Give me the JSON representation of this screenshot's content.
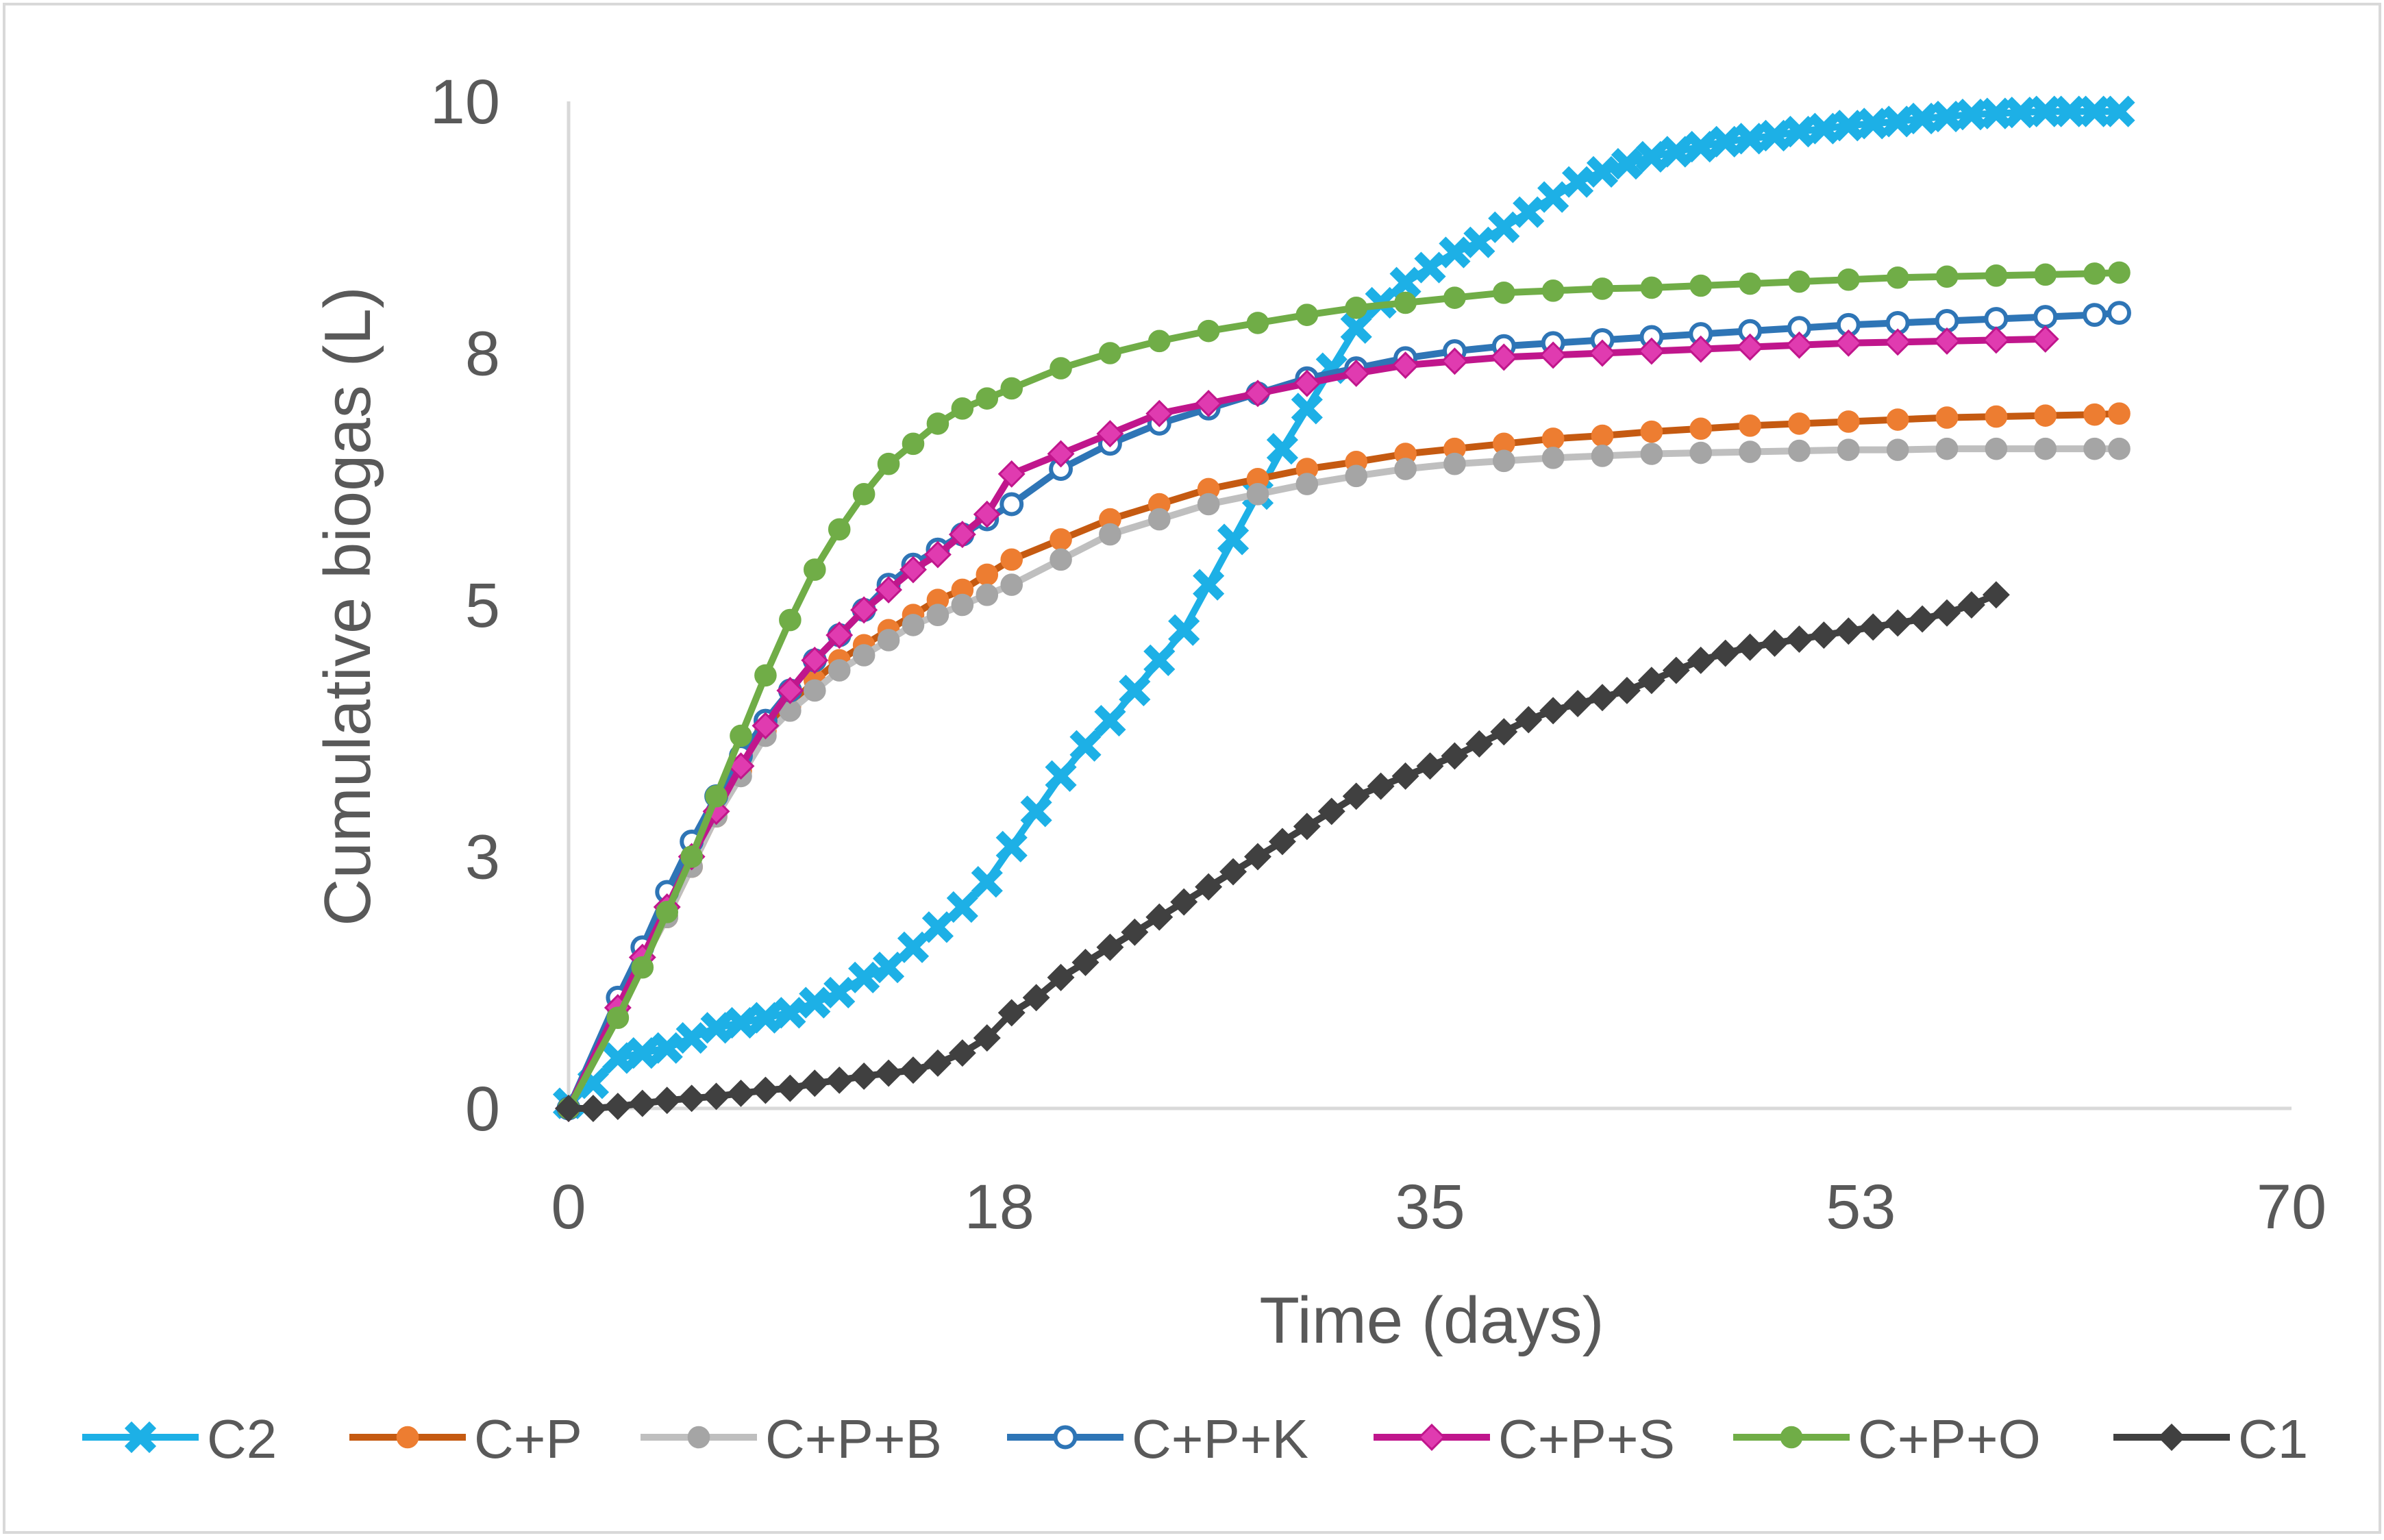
{
  "chart_data": {
    "type": "line",
    "title": "",
    "xlabel": "Time (days)",
    "ylabel": "Cumulative biogas (L)",
    "xlim": [
      0,
      70
    ],
    "ylim": [
      0,
      10
    ],
    "x_ticks": [
      0,
      17.5,
      35,
      52.5,
      70
    ],
    "x_tick_labels": [
      "0",
      "18",
      "35",
      "53",
      "70"
    ],
    "y_ticks": [
      0,
      2.5,
      5,
      7.5,
      10
    ],
    "y_tick_labels": [
      "0",
      "3",
      "5",
      "8",
      "10"
    ],
    "grid": false,
    "legend_position": "bottom",
    "series": [
      {
        "name": "C2",
        "color": "#1DB0E6",
        "marker": "x",
        "x": [
          0,
          1,
          2,
          3,
          4,
          5,
          6,
          7,
          8,
          9,
          10,
          11,
          12,
          13,
          14,
          15,
          16,
          17,
          18,
          19,
          20,
          21,
          22,
          23,
          24,
          25,
          26,
          27,
          28,
          29,
          30,
          31,
          32,
          33,
          34,
          35,
          36,
          37,
          38,
          39,
          40,
          41,
          42,
          43,
          44,
          45,
          46,
          47,
          48,
          49,
          50,
          51,
          52,
          53,
          54,
          55,
          56,
          57,
          58,
          59,
          60,
          61,
          62,
          63
        ],
        "y": [
          0.05,
          0.25,
          0.5,
          0.55,
          0.6,
          0.7,
          0.8,
          0.85,
          0.9,
          0.95,
          1.05,
          1.15,
          1.3,
          1.4,
          1.6,
          1.8,
          2.0,
          2.25,
          2.6,
          2.95,
          3.3,
          3.6,
          3.85,
          4.15,
          4.45,
          4.75,
          5.2,
          5.65,
          6.1,
          6.55,
          6.95,
          7.35,
          7.75,
          8.0,
          8.2,
          8.35,
          8.5,
          8.6,
          8.75,
          8.9,
          9.05,
          9.2,
          9.3,
          9.38,
          9.45,
          9.5,
          9.55,
          9.6,
          9.63,
          9.66,
          9.7,
          9.73,
          9.76,
          9.78,
          9.8,
          9.83,
          9.85,
          9.87,
          9.88,
          9.89,
          9.9,
          9.9,
          9.9,
          9.9
        ]
      },
      {
        "name": "C+P",
        "color": "#C55A11",
        "marker": "circle-filled",
        "marker_fill": "#ED7D31",
        "x": [
          0,
          2,
          4,
          5,
          6,
          7,
          8,
          9,
          10,
          11,
          12,
          13,
          14,
          15,
          16,
          17,
          18,
          20,
          22,
          24,
          26,
          28,
          30,
          32,
          34,
          36,
          38,
          40,
          42,
          44,
          46,
          48,
          50,
          52,
          54,
          56,
          58,
          60,
          62,
          63
        ],
        "y": [
          0,
          1.0,
          1.9,
          2.4,
          2.9,
          3.35,
          3.75,
          4.0,
          4.25,
          4.45,
          4.6,
          4.75,
          4.9,
          5.05,
          5.15,
          5.3,
          5.45,
          5.65,
          5.85,
          6.0,
          6.15,
          6.25,
          6.35,
          6.42,
          6.5,
          6.55,
          6.6,
          6.65,
          6.68,
          6.72,
          6.75,
          6.78,
          6.8,
          6.82,
          6.84,
          6.86,
          6.87,
          6.88,
          6.89,
          6.9
        ]
      },
      {
        "name": "C+P+B",
        "color": "#BFBFBF",
        "marker": "circle-filled",
        "marker_fill": "#A5A5A5",
        "x": [
          0,
          2,
          4,
          5,
          6,
          7,
          8,
          9,
          10,
          11,
          12,
          13,
          14,
          15,
          16,
          17,
          18,
          20,
          22,
          24,
          26,
          28,
          30,
          32,
          34,
          36,
          38,
          40,
          42,
          44,
          46,
          48,
          50,
          52,
          54,
          56,
          58,
          60,
          62,
          63
        ],
        "y": [
          0,
          1.0,
          1.9,
          2.4,
          2.9,
          3.3,
          3.7,
          3.95,
          4.15,
          4.35,
          4.5,
          4.65,
          4.8,
          4.9,
          5.0,
          5.1,
          5.2,
          5.45,
          5.7,
          5.85,
          6.0,
          6.1,
          6.2,
          6.28,
          6.35,
          6.4,
          6.43,
          6.46,
          6.48,
          6.5,
          6.51,
          6.52,
          6.53,
          6.54,
          6.54,
          6.55,
          6.55,
          6.55,
          6.55,
          6.55
        ]
      },
      {
        "name": "C+P+K",
        "color": "#2E75B6",
        "marker": "circle-open",
        "marker_fill": "#FFFFFF",
        "x": [
          0,
          2,
          3,
          4,
          5,
          6,
          7,
          8,
          9,
          10,
          11,
          12,
          13,
          14,
          15,
          16,
          17,
          18,
          20,
          22,
          24,
          26,
          28,
          30,
          32,
          34,
          36,
          38,
          40,
          42,
          44,
          46,
          48,
          50,
          52,
          54,
          56,
          58,
          60,
          62,
          63
        ],
        "y": [
          0,
          1.1,
          1.6,
          2.15,
          2.65,
          3.1,
          3.5,
          3.85,
          4.15,
          4.45,
          4.7,
          4.95,
          5.2,
          5.4,
          5.55,
          5.7,
          5.85,
          6.0,
          6.35,
          6.6,
          6.8,
          6.95,
          7.1,
          7.25,
          7.35,
          7.45,
          7.52,
          7.57,
          7.6,
          7.63,
          7.66,
          7.69,
          7.72,
          7.75,
          7.78,
          7.8,
          7.82,
          7.84,
          7.86,
          7.88,
          7.9
        ]
      },
      {
        "name": "C+P+S",
        "color": "#C0168C",
        "marker": "diamond",
        "marker_fill": "#E03BB0",
        "x": [
          0,
          2,
          3,
          4,
          5,
          6,
          7,
          8,
          9,
          10,
          11,
          12,
          13,
          14,
          15,
          16,
          17,
          18,
          20,
          22,
          24,
          26,
          28,
          30,
          32,
          34,
          36,
          38,
          40,
          42,
          44,
          46,
          48,
          50,
          52,
          54,
          56,
          58,
          60
        ],
        "y": [
          0,
          1.0,
          1.5,
          2.0,
          2.5,
          2.95,
          3.4,
          3.8,
          4.15,
          4.45,
          4.7,
          4.95,
          5.15,
          5.35,
          5.5,
          5.7,
          5.9,
          6.3,
          6.5,
          6.7,
          6.9,
          7.0,
          7.1,
          7.2,
          7.3,
          7.38,
          7.42,
          7.46,
          7.48,
          7.5,
          7.52,
          7.54,
          7.56,
          7.58,
          7.6,
          7.61,
          7.62,
          7.63,
          7.64
        ]
      },
      {
        "name": "C+P+O",
        "color": "#70AD47",
        "marker": "circle-filled",
        "marker_fill": "#70AD47",
        "x": [
          0,
          2,
          3,
          4,
          5,
          6,
          7,
          8,
          9,
          10,
          11,
          12,
          13,
          14,
          15,
          16,
          17,
          18,
          20,
          22,
          24,
          26,
          28,
          30,
          32,
          34,
          36,
          38,
          40,
          42,
          44,
          46,
          48,
          50,
          52,
          54,
          56,
          58,
          60,
          62,
          63
        ],
        "y": [
          0,
          0.9,
          1.4,
          1.95,
          2.5,
          3.1,
          3.7,
          4.3,
          4.85,
          5.35,
          5.75,
          6.1,
          6.4,
          6.6,
          6.8,
          6.95,
          7.05,
          7.15,
          7.35,
          7.5,
          7.62,
          7.72,
          7.8,
          7.88,
          7.95,
          8.0,
          8.05,
          8.1,
          8.12,
          8.14,
          8.15,
          8.17,
          8.19,
          8.21,
          8.23,
          8.25,
          8.26,
          8.27,
          8.28,
          8.29,
          8.3
        ]
      },
      {
        "name": "C1",
        "color": "#404040",
        "marker": "diamond",
        "marker_fill": "#404040",
        "x": [
          0,
          1,
          2,
          3,
          4,
          5,
          6,
          7,
          8,
          9,
          10,
          11,
          12,
          13,
          14,
          15,
          16,
          17,
          18,
          19,
          20,
          21,
          22,
          23,
          24,
          25,
          26,
          27,
          28,
          29,
          30,
          31,
          32,
          33,
          34,
          35,
          36,
          37,
          38,
          39,
          40,
          41,
          42,
          43,
          44,
          45,
          46,
          47,
          48,
          49,
          50,
          51,
          52,
          53,
          54,
          55,
          56,
          57,
          58
        ],
        "y": [
          0,
          0.0,
          0.02,
          0.05,
          0.08,
          0.1,
          0.12,
          0.15,
          0.18,
          0.2,
          0.25,
          0.28,
          0.32,
          0.35,
          0.38,
          0.45,
          0.55,
          0.7,
          0.95,
          1.1,
          1.3,
          1.45,
          1.6,
          1.75,
          1.9,
          2.05,
          2.2,
          2.35,
          2.5,
          2.65,
          2.8,
          2.95,
          3.1,
          3.2,
          3.3,
          3.4,
          3.5,
          3.62,
          3.74,
          3.86,
          3.95,
          4.02,
          4.08,
          4.15,
          4.25,
          4.35,
          4.45,
          4.52,
          4.58,
          4.62,
          4.66,
          4.7,
          4.74,
          4.78,
          4.82,
          4.86,
          4.92,
          5.0,
          5.1
        ]
      }
    ]
  }
}
